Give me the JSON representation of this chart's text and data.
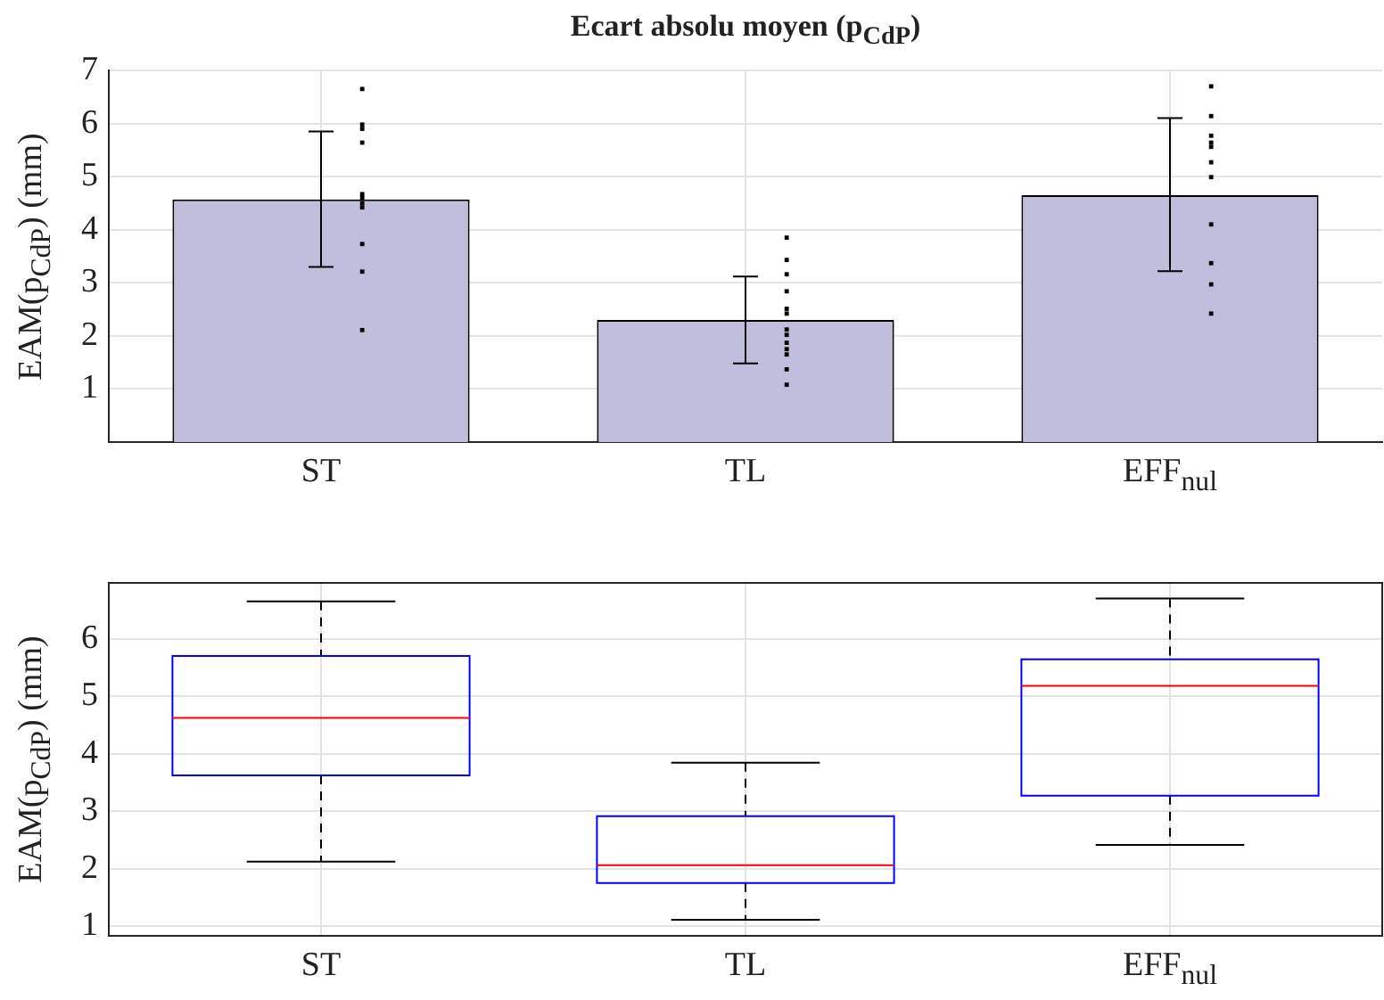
{
  "chart_data": [
    {
      "type": "bar",
      "title": "Ecart absolu moyen (p$_{CdP}$)",
      "ylabel": "EAM(p$_{CdP}$)  (mm)",
      "categories": [
        "ST",
        "TL",
        "EFF$_{nul}$"
      ],
      "series": [
        {
          "type": "bar",
          "color": "#c0bedc",
          "values": [
            4.57,
            2.3,
            4.65
          ],
          "errors": [
            [
              3.3,
              5.85
            ],
            [
              1.48,
              3.12
            ],
            [
              3.22,
              6.1
            ]
          ]
        },
        {
          "type": "scatter",
          "color": "#000000",
          "marker": "square",
          "x": [
            "ST",
            "ST",
            "ST",
            "ST",
            "ST",
            "ST",
            "ST",
            "ST",
            "ST",
            "ST",
            "ST",
            "TL",
            "TL",
            "TL",
            "TL",
            "TL",
            "TL",
            "TL",
            "TL",
            "TL",
            "TL",
            "TL",
            "TL",
            "TL",
            "EFF$_{nul}$",
            "EFF$_{nul}$",
            "EFF$_{nul}$",
            "EFF$_{nul}$",
            "EFF$_{nul}$",
            "EFF$_{nul}$",
            "EFF$_{nul}$",
            "EFF$_{nul}$",
            "EFF$_{nul}$",
            "EFF$_{nul}$",
            "EFF$_{nul}$"
          ],
          "values": [
            6.65,
            5.98,
            5.9,
            5.64,
            4.67,
            4.6,
            4.5,
            4.42,
            3.73,
            3.21,
            2.11,
            3.85,
            3.43,
            3.16,
            2.84,
            2.51,
            2.42,
            2.12,
            2.02,
            1.87,
            1.75,
            1.65,
            1.37,
            1.08,
            6.7,
            6.14,
            5.77,
            5.64,
            5.56,
            5.27,
            4.99,
            4.1,
            3.37,
            2.97,
            2.42
          ]
        }
      ],
      "ylim": [
        0,
        7
      ],
      "yticks": [
        1,
        2,
        3,
        4,
        5,
        6,
        7
      ],
      "grid": true,
      "legend": false
    },
    {
      "type": "box",
      "ylabel": "EAM(p$_{CdP}$)  (mm)",
      "categories": [
        "ST",
        "TL",
        "EFF$_{nul}$"
      ],
      "color": "#0000ff",
      "boxes": [
        {
          "low": 2.12,
          "q1": 3.62,
          "median": 4.62,
          "q3": 5.7,
          "high": 6.65
        },
        {
          "low": 1.11,
          "q1": 1.75,
          "median": 2.06,
          "q3": 2.91,
          "high": 3.84
        },
        {
          "low": 2.41,
          "q1": 3.27,
          "median": 5.18,
          "q3": 5.64,
          "high": 6.7
        }
      ],
      "ylim": [
        0.83,
        6.97
      ],
      "yticks": [
        1,
        2,
        3,
        4,
        5,
        6
      ],
      "grid": true,
      "legend": false
    }
  ]
}
